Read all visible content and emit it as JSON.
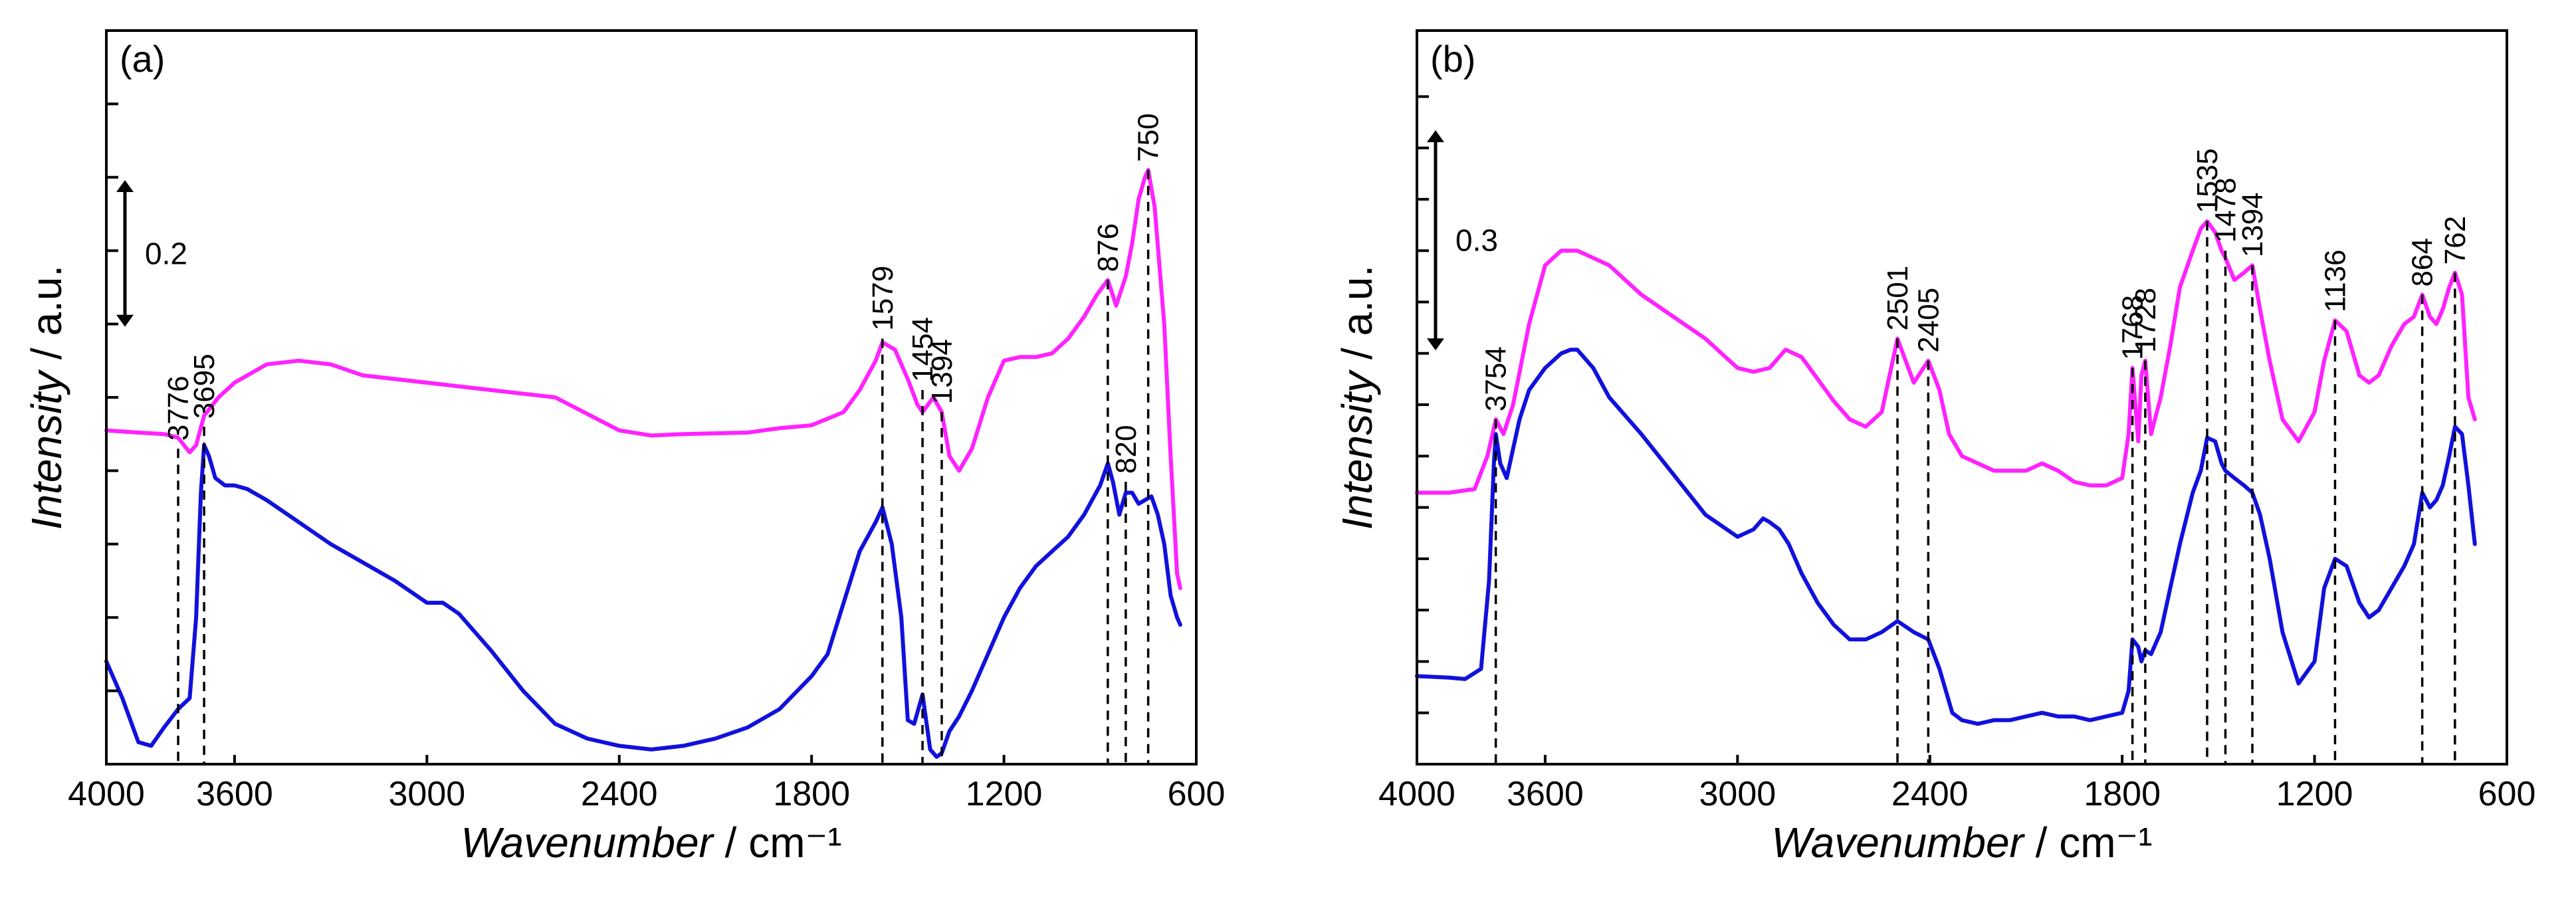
{
  "chart_data": [
    {
      "type": "line",
      "panel_label": "(a)",
      "xlabel_var": "Wavenumber",
      "xlabel_unit": " / cm⁻¹",
      "ylabel_var": "Intensity",
      "ylabel_unit": " / a.u.",
      "xlim": [
        4000,
        600
      ],
      "ylim": [
        0,
        1
      ],
      "xticks": [
        4000,
        3600,
        3000,
        2400,
        1800,
        1200,
        600
      ],
      "yticks": [
        0.1,
        0.2,
        0.3,
        0.4,
        0.5,
        0.6,
        0.7,
        0.8,
        0.9
      ],
      "scale_bar": {
        "value": 0.2,
        "label": "0.2"
      },
      "peaks": [
        {
          "x": 3776,
          "label": "3776",
          "y_top": 0.43
        },
        {
          "x": 3695,
          "label": "3695",
          "y_top": 0.46
        },
        {
          "x": 1579,
          "label": "1579",
          "y_top": 0.58
        },
        {
          "x": 1454,
          "label": "1454",
          "y_top": 0.51
        },
        {
          "x": 1394,
          "label": "1394",
          "y_top": 0.48
        },
        {
          "x": 876,
          "label": "876",
          "y_top": 0.66
        },
        {
          "x": 820,
          "label": "820",
          "y_top": 0.385
        },
        {
          "x": 750,
          "label": "750",
          "y_top": 0.81
        }
      ],
      "series": [
        {
          "name": "upper",
          "color": "#ff22ff",
          "x": [
            4000,
            3900,
            3820,
            3776,
            3740,
            3720,
            3695,
            3650,
            3600,
            3500,
            3400,
            3300,
            3200,
            3000,
            2800,
            2600,
            2400,
            2300,
            2200,
            2000,
            1900,
            1800,
            1700,
            1650,
            1600,
            1579,
            1540,
            1500,
            1470,
            1454,
            1420,
            1394,
            1370,
            1340,
            1300,
            1250,
            1200,
            1150,
            1100,
            1050,
            1000,
            950,
            910,
            876,
            850,
            820,
            800,
            780,
            760,
            750,
            730,
            700,
            680,
            660,
            650
          ],
          "values": [
            0.455,
            0.452,
            0.45,
            0.445,
            0.425,
            0.435,
            0.475,
            0.5,
            0.52,
            0.545,
            0.55,
            0.545,
            0.53,
            0.52,
            0.51,
            0.5,
            0.455,
            0.448,
            0.45,
            0.452,
            0.458,
            0.462,
            0.48,
            0.51,
            0.55,
            0.575,
            0.565,
            0.525,
            0.49,
            0.48,
            0.5,
            0.48,
            0.42,
            0.4,
            0.43,
            0.5,
            0.55,
            0.555,
            0.555,
            0.56,
            0.58,
            0.61,
            0.64,
            0.66,
            0.625,
            0.665,
            0.71,
            0.77,
            0.8,
            0.81,
            0.76,
            0.6,
            0.42,
            0.26,
            0.24
          ]
        },
        {
          "name": "lower",
          "color": "#1111dd",
          "x": [
            4000,
            3950,
            3900,
            3860,
            3820,
            3776,
            3740,
            3720,
            3705,
            3695,
            3680,
            3660,
            3630,
            3600,
            3560,
            3500,
            3400,
            3300,
            3200,
            3100,
            3000,
            2950,
            2900,
            2850,
            2800,
            2700,
            2600,
            2500,
            2400,
            2300,
            2200,
            2100,
            2000,
            1900,
            1800,
            1750,
            1700,
            1650,
            1600,
            1579,
            1550,
            1520,
            1500,
            1480,
            1454,
            1430,
            1410,
            1394,
            1370,
            1340,
            1300,
            1250,
            1200,
            1150,
            1100,
            1050,
            1000,
            950,
            900,
            876,
            860,
            840,
            820,
            800,
            780,
            760,
            740,
            720,
            700,
            680,
            660,
            650
          ],
          "values": [
            0.14,
            0.09,
            0.03,
            0.025,
            0.05,
            0.075,
            0.09,
            0.2,
            0.37,
            0.435,
            0.42,
            0.39,
            0.38,
            0.38,
            0.375,
            0.36,
            0.33,
            0.3,
            0.275,
            0.25,
            0.22,
            0.22,
            0.205,
            0.18,
            0.155,
            0.1,
            0.055,
            0.035,
            0.025,
            0.02,
            0.025,
            0.035,
            0.05,
            0.075,
            0.12,
            0.15,
            0.22,
            0.29,
            0.33,
            0.35,
            0.3,
            0.2,
            0.06,
            0.055,
            0.095,
            0.02,
            0.01,
            0.015,
            0.045,
            0.065,
            0.1,
            0.15,
            0.2,
            0.24,
            0.27,
            0.29,
            0.31,
            0.34,
            0.38,
            0.41,
            0.385,
            0.34,
            0.37,
            0.37,
            0.355,
            0.36,
            0.365,
            0.34,
            0.3,
            0.23,
            0.2,
            0.19
          ]
        }
      ]
    },
    {
      "type": "line",
      "panel_label": "(b)",
      "xlabel_var": "Wavenumber",
      "xlabel_unit": " / cm⁻¹",
      "ylabel_var": "Intensity",
      "ylabel_unit": " / a.u.",
      "xlim": [
        4000,
        600
      ],
      "ylim": [
        0,
        1
      ],
      "xticks": [
        4000,
        3600,
        3000,
        2400,
        1800,
        1200,
        600
      ],
      "yticks": [
        0.07,
        0.14,
        0.21,
        0.28,
        0.35,
        0.42,
        0.49,
        0.56,
        0.63,
        0.7,
        0.77,
        0.84,
        0.91
      ],
      "scale_bar": {
        "value": 0.3,
        "label": "0.3"
      },
      "peaks": [
        {
          "x": 3754,
          "label": "3754",
          "y_top": 0.47
        },
        {
          "x": 2501,
          "label": "2501",
          "y_top": 0.58
        },
        {
          "x": 2405,
          "label": "2405",
          "y_top": 0.55
        },
        {
          "x": 1768,
          "label": "1768",
          "y_top": 0.54
        },
        {
          "x": 1728,
          "label": "1728",
          "y_top": 0.55
        },
        {
          "x": 1535,
          "label": "1535",
          "y_top": 0.74
        },
        {
          "x": 1478,
          "label": "1478",
          "y_top": 0.7
        },
        {
          "x": 1394,
          "label": "1394",
          "y_top": 0.68
        },
        {
          "x": 1136,
          "label": "1136",
          "y_top": 0.605
        },
        {
          "x": 864,
          "label": "864",
          "y_top": 0.64
        },
        {
          "x": 762,
          "label": "762",
          "y_top": 0.67
        }
      ],
      "series": [
        {
          "name": "upper",
          "color": "#ff22ff",
          "x": [
            4000,
            3900,
            3820,
            3780,
            3754,
            3730,
            3700,
            3650,
            3600,
            3550,
            3500,
            3450,
            3400,
            3350,
            3300,
            3200,
            3100,
            3000,
            2950,
            2900,
            2850,
            2800,
            2750,
            2700,
            2650,
            2600,
            2550,
            2501,
            2450,
            2405,
            2370,
            2340,
            2300,
            2250,
            2200,
            2150,
            2100,
            2050,
            2000,
            1950,
            1900,
            1850,
            1800,
            1780,
            1768,
            1750,
            1740,
            1728,
            1710,
            1680,
            1650,
            1620,
            1580,
            1555,
            1535,
            1510,
            1490,
            1478,
            1450,
            1420,
            1394,
            1370,
            1340,
            1300,
            1250,
            1200,
            1170,
            1136,
            1100,
            1060,
            1030,
            1000,
            960,
            920,
            890,
            864,
            840,
            820,
            800,
            780,
            762,
            740,
            720,
            700
          ],
          "values": [
            0.37,
            0.37,
            0.375,
            0.42,
            0.47,
            0.45,
            0.49,
            0.6,
            0.68,
            0.7,
            0.7,
            0.69,
            0.68,
            0.66,
            0.64,
            0.61,
            0.58,
            0.54,
            0.535,
            0.54,
            0.565,
            0.555,
            0.525,
            0.495,
            0.47,
            0.46,
            0.48,
            0.58,
            0.52,
            0.55,
            0.51,
            0.45,
            0.42,
            0.41,
            0.4,
            0.4,
            0.4,
            0.41,
            0.4,
            0.385,
            0.38,
            0.38,
            0.39,
            0.45,
            0.54,
            0.44,
            0.53,
            0.55,
            0.45,
            0.5,
            0.57,
            0.65,
            0.7,
            0.73,
            0.74,
            0.725,
            0.7,
            0.69,
            0.66,
            0.67,
            0.68,
            0.62,
            0.55,
            0.47,
            0.44,
            0.48,
            0.55,
            0.605,
            0.59,
            0.53,
            0.52,
            0.53,
            0.57,
            0.6,
            0.61,
            0.64,
            0.61,
            0.6,
            0.62,
            0.65,
            0.67,
            0.64,
            0.5,
            0.47
          ]
        },
        {
          "name": "lower",
          "color": "#1111dd",
          "x": [
            4000,
            3900,
            3850,
            3800,
            3775,
            3760,
            3754,
            3740,
            3720,
            3700,
            3680,
            3650,
            3600,
            3550,
            3520,
            3500,
            3450,
            3400,
            3300,
            3200,
            3100,
            3000,
            2950,
            2920,
            2900,
            2870,
            2840,
            2800,
            2750,
            2700,
            2650,
            2600,
            2550,
            2501,
            2450,
            2405,
            2370,
            2330,
            2300,
            2250,
            2200,
            2150,
            2100,
            2050,
            2000,
            1950,
            1900,
            1850,
            1800,
            1780,
            1768,
            1750,
            1740,
            1728,
            1710,
            1680,
            1650,
            1620,
            1580,
            1555,
            1535,
            1510,
            1490,
            1478,
            1450,
            1420,
            1394,
            1370,
            1340,
            1300,
            1250,
            1200,
            1170,
            1136,
            1100,
            1060,
            1030,
            1000,
            960,
            920,
            890,
            864,
            840,
            820,
            800,
            780,
            762,
            740,
            720,
            700
          ],
          "values": [
            0.12,
            0.118,
            0.116,
            0.13,
            0.25,
            0.41,
            0.45,
            0.41,
            0.39,
            0.43,
            0.47,
            0.51,
            0.54,
            0.56,
            0.565,
            0.565,
            0.54,
            0.5,
            0.45,
            0.395,
            0.34,
            0.31,
            0.32,
            0.335,
            0.33,
            0.32,
            0.3,
            0.26,
            0.22,
            0.19,
            0.17,
            0.17,
            0.18,
            0.195,
            0.18,
            0.17,
            0.13,
            0.07,
            0.06,
            0.055,
            0.06,
            0.06,
            0.065,
            0.07,
            0.065,
            0.065,
            0.06,
            0.065,
            0.07,
            0.1,
            0.17,
            0.16,
            0.14,
            0.155,
            0.15,
            0.18,
            0.24,
            0.3,
            0.37,
            0.4,
            0.445,
            0.44,
            0.41,
            0.4,
            0.39,
            0.38,
            0.37,
            0.34,
            0.28,
            0.18,
            0.11,
            0.14,
            0.24,
            0.28,
            0.27,
            0.22,
            0.2,
            0.21,
            0.24,
            0.27,
            0.3,
            0.37,
            0.35,
            0.36,
            0.38,
            0.42,
            0.46,
            0.45,
            0.38,
            0.3
          ]
        }
      ]
    }
  ]
}
